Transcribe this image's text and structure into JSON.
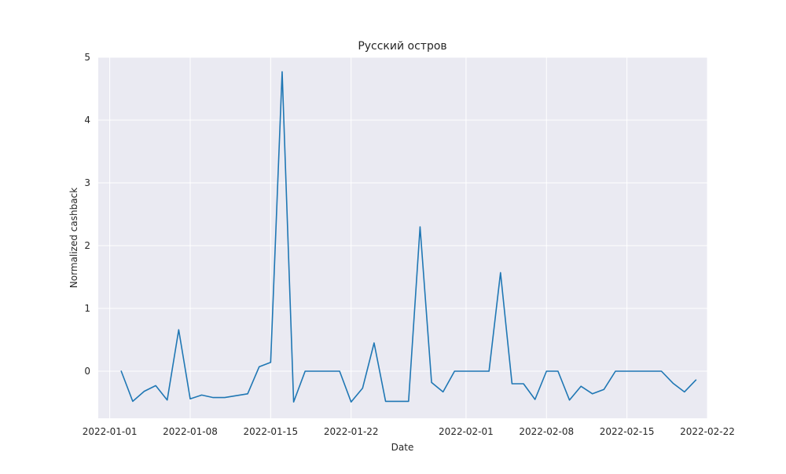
{
  "chart_data": {
    "type": "line",
    "title": "Русский остров",
    "xlabel": "Date",
    "ylabel": "Normalized cashback",
    "x_tick_labels": [
      "2022-01-01",
      "2022-01-08",
      "2022-01-15",
      "2022-01-22",
      "2022-02-01",
      "2022-02-08",
      "2022-02-15",
      "2022-02-22"
    ],
    "y_tick_labels": [
      "0",
      "1",
      "2",
      "3",
      "4",
      "5"
    ],
    "y_ticks": [
      0,
      1,
      2,
      3,
      4,
      5
    ],
    "xlim": [
      "2021-12-31",
      "2022-02-22"
    ],
    "ylim": [
      -0.75,
      5.0
    ],
    "grid": true,
    "line_color": "#1f77b4",
    "background_color": "#eaeaf2",
    "series": [
      {
        "x": [
          "2022-01-02",
          "2022-01-03",
          "2022-01-04",
          "2022-01-05",
          "2022-01-06",
          "2022-01-07",
          "2022-01-08",
          "2022-01-09",
          "2022-01-10",
          "2022-01-11",
          "2022-01-13",
          "2022-01-14",
          "2022-01-15",
          "2022-01-16",
          "2022-01-17",
          "2022-01-18",
          "2022-01-19",
          "2022-01-20",
          "2022-01-21",
          "2022-01-22",
          "2022-01-23",
          "2022-01-24",
          "2022-01-25",
          "2022-01-26",
          "2022-01-27",
          "2022-01-28",
          "2022-01-29",
          "2022-01-30",
          "2022-01-31",
          "2022-02-01",
          "2022-02-02",
          "2022-02-03",
          "2022-02-04",
          "2022-02-05",
          "2022-02-06",
          "2022-02-07",
          "2022-02-08",
          "2022-02-09",
          "2022-02-10",
          "2022-02-11",
          "2022-02-12",
          "2022-02-13",
          "2022-02-14",
          "2022-02-15",
          "2022-02-16",
          "2022-02-17",
          "2022-02-18",
          "2022-02-19",
          "2022-02-20",
          "2022-02-21"
        ],
        "values": [
          0.0,
          -0.48,
          -0.32,
          -0.23,
          -0.46,
          0.66,
          -0.44,
          -0.38,
          -0.42,
          -0.42,
          -0.36,
          0.07,
          0.14,
          4.77,
          -0.49,
          0.0,
          0.0,
          0.0,
          0.0,
          -0.49,
          -0.27,
          0.45,
          -0.48,
          -0.48,
          -0.48,
          2.3,
          -0.18,
          -0.33,
          0.0,
          0.0,
          0.0,
          0.0,
          1.57,
          -0.2,
          -0.2,
          -0.45,
          0.0,
          0.0,
          -0.46,
          -0.24,
          -0.36,
          -0.29,
          0.0,
          0.0,
          0.0,
          0.0,
          0.0,
          -0.19,
          -0.33,
          -0.14
        ]
      }
    ]
  }
}
